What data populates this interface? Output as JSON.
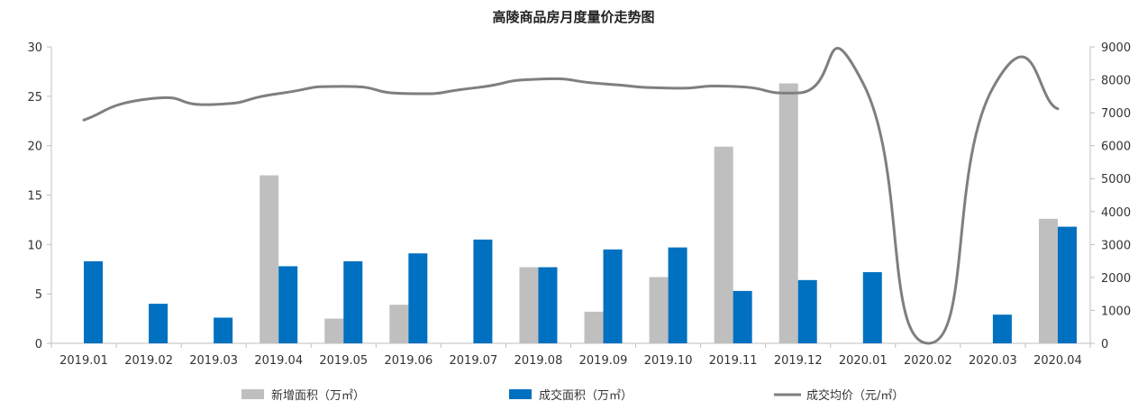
{
  "chart_data": {
    "type": "bar",
    "title": "高陵商品房月度量价走势图",
    "categories": [
      "2019.01",
      "2019.02",
      "2019.03",
      "2019.04",
      "2019.05",
      "2019.06",
      "2019.07",
      "2019.08",
      "2019.09",
      "2019.10",
      "2019.11",
      "2019.12",
      "2020.01",
      "2020.02",
      "2020.03",
      "2020.04"
    ],
    "series": [
      {
        "name": "新增面积（万㎡）",
        "type": "bar",
        "axis": "left",
        "color": "#bfbfbf",
        "values": [
          0,
          0,
          0.05,
          17,
          2.5,
          3.9,
          0,
          7.7,
          3.2,
          6.7,
          19.9,
          26.3,
          0,
          0,
          0,
          12.6
        ]
      },
      {
        "name": "成交面积（万㎡）",
        "type": "bar",
        "axis": "left",
        "color": "#0070c0",
        "values": [
          8.3,
          4.0,
          2.6,
          7.8,
          8.3,
          9.1,
          10.5,
          7.7,
          9.5,
          9.7,
          5.3,
          6.4,
          7.2,
          0,
          2.9,
          11.8
        ]
      },
      {
        "name": "成交均价（元/㎡）",
        "type": "line",
        "axis": "right",
        "color": "#7f7f7f",
        "values": [
          6780,
          7420,
          7250,
          7580,
          7800,
          7580,
          7750,
          8020,
          7880,
          7750,
          7800,
          7600,
          7900,
          0,
          7750,
          7120
        ]
      }
    ],
    "left_axis": {
      "min": 0,
      "max": 30,
      "step": 5,
      "ticks": [
        "0",
        "5",
        "10",
        "15",
        "20",
        "25",
        "30"
      ]
    },
    "right_axis": {
      "min": 0,
      "max": 9000,
      "step": 1000,
      "ticks": [
        "0",
        "1000",
        "2000",
        "3000",
        "4000",
        "5000",
        "6000",
        "7000",
        "8000",
        "9000"
      ]
    },
    "grid": false,
    "legend_position": "bottom"
  }
}
